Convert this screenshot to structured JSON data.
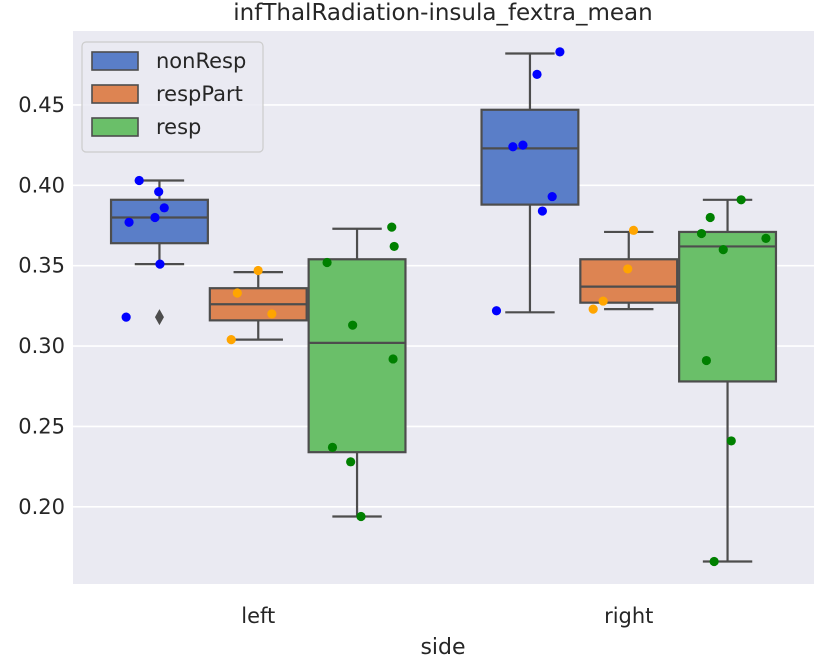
{
  "chart_data": {
    "type": "box",
    "title": "infThalRadiation-insula_fextra_mean",
    "xlabel": "side",
    "ylabel": "",
    "categories": [
      "left",
      "right"
    ],
    "ylim": [
      0.152,
      0.496
    ],
    "yticks": [
      0.2,
      0.25,
      0.3,
      0.35,
      0.4,
      0.45
    ],
    "ytick_labels": [
      "0.20",
      "0.25",
      "0.30",
      "0.35",
      "0.40",
      "0.45"
    ],
    "grid": true,
    "legend_position": "top-left",
    "series": [
      {
        "name": "nonResp",
        "color": "#5a7ec8",
        "point_color": "#0000ff",
        "boxes": [
          {
            "category": "left",
            "whisker_low": 0.351,
            "q1": 0.364,
            "median": 0.38,
            "q3": 0.391,
            "whisker_high": 0.403,
            "outliers": [
              0.318
            ]
          },
          {
            "category": "right",
            "whisker_low": 0.321,
            "q1": 0.388,
            "median": 0.423,
            "q3": 0.447,
            "whisker_high": 0.482,
            "outliers": []
          }
        ],
        "points": [
          {
            "category": "left",
            "values": [
              0.396,
              0.386,
              0.377,
              0.403,
              0.38,
              0.351,
              0.318
            ]
          },
          {
            "category": "right",
            "values": [
              0.483,
              0.469,
              0.425,
              0.424,
              0.393,
              0.384,
              0.322
            ]
          }
        ]
      },
      {
        "name": "respPart",
        "color": "#dd8452",
        "point_color": "#ffa500",
        "boxes": [
          {
            "category": "left",
            "whisker_low": 0.304,
            "q1": 0.316,
            "median": 0.326,
            "q3": 0.336,
            "whisker_high": 0.346,
            "outliers": []
          },
          {
            "category": "right",
            "whisker_low": 0.323,
            "q1": 0.327,
            "median": 0.337,
            "q3": 0.354,
            "whisker_high": 0.371,
            "outliers": []
          }
        ],
        "points": [
          {
            "category": "left",
            "values": [
              0.347,
              0.333,
              0.32,
              0.304
            ]
          },
          {
            "category": "right",
            "values": [
              0.372,
              0.348,
              0.328,
              0.323
            ]
          }
        ]
      },
      {
        "name": "resp",
        "color": "#6abf69",
        "point_color": "#008000",
        "boxes": [
          {
            "category": "left",
            "whisker_low": 0.194,
            "q1": 0.234,
            "median": 0.302,
            "q3": 0.354,
            "whisker_high": 0.373,
            "outliers": []
          },
          {
            "category": "right",
            "whisker_low": 0.166,
            "q1": 0.278,
            "median": 0.362,
            "q3": 0.371,
            "whisker_high": 0.391,
            "outliers": []
          }
        ],
        "points": [
          {
            "category": "left",
            "values": [
              0.374,
              0.362,
              0.352,
              0.313,
              0.292,
              0.237,
              0.228,
              0.194
            ]
          },
          {
            "category": "right",
            "values": [
              0.391,
              0.38,
              0.37,
              0.367,
              0.36,
              0.291,
              0.241,
              0.166
            ]
          }
        ]
      }
    ]
  }
}
